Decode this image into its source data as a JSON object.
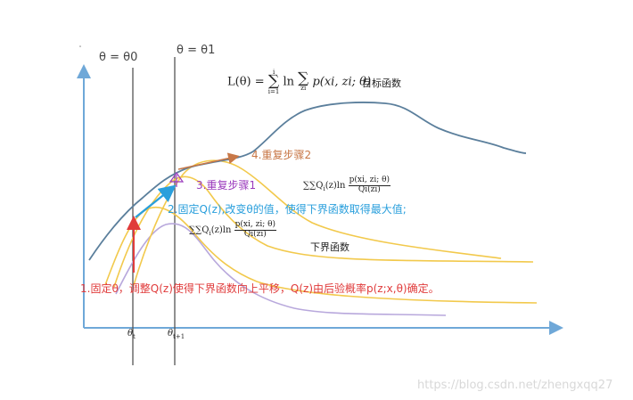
{
  "labels": {
    "theta0_top": "θ = θ0",
    "theta1_top": "θ = θ1",
    "objective_name": "目标函数",
    "lower_bound_name": "下界函数",
    "axis_theta_t": "θ",
    "axis_theta_t_sub": "t",
    "axis_theta_t1": "θ",
    "axis_theta_t1_sub": "t+1"
  },
  "formulas": {
    "objective": {
      "lhs": "L(θ)",
      "eq": "=",
      "sum_top": "i",
      "sum_bottom": "i=1",
      "ln": "ln",
      "inner_sum_bottom": "zi",
      "p": "p(xi, zi; θ)"
    },
    "lower_bound_1": {
      "prefix": "∑∑Q",
      "num": "p(xi, zi; θ)",
      "den": "Qi(zi)"
    },
    "lower_bound_2": {
      "prefix": "∑∑Q",
      "num": "p(xi, zi; θ)",
      "den": "Qi(zi)"
    }
  },
  "steps": {
    "step1": "1.固定θ，调整Q(z)使得下界函数向上平移，Q(z)由后验概率p(z;x,θ)确定。",
    "step2": "2.固定Q(z),改变θ的值，使得下界函数取得最大值;",
    "step3": "3.重复步骤1",
    "step4": "4.重复步骤2"
  },
  "watermark": "https://blog.csdn.net/zhengxqq27",
  "colors": {
    "axis": "#6fa8d8",
    "objective_curve": "#5b7f9c",
    "lower_bound_curve": "#f2c94c",
    "lavender_curve": "#b8a8dc",
    "vertical_line": "#555555",
    "step1": "#e03b3b",
    "step2": "#2a9fdc",
    "step3": "#9b3bbd",
    "step4": "#c87848"
  }
}
